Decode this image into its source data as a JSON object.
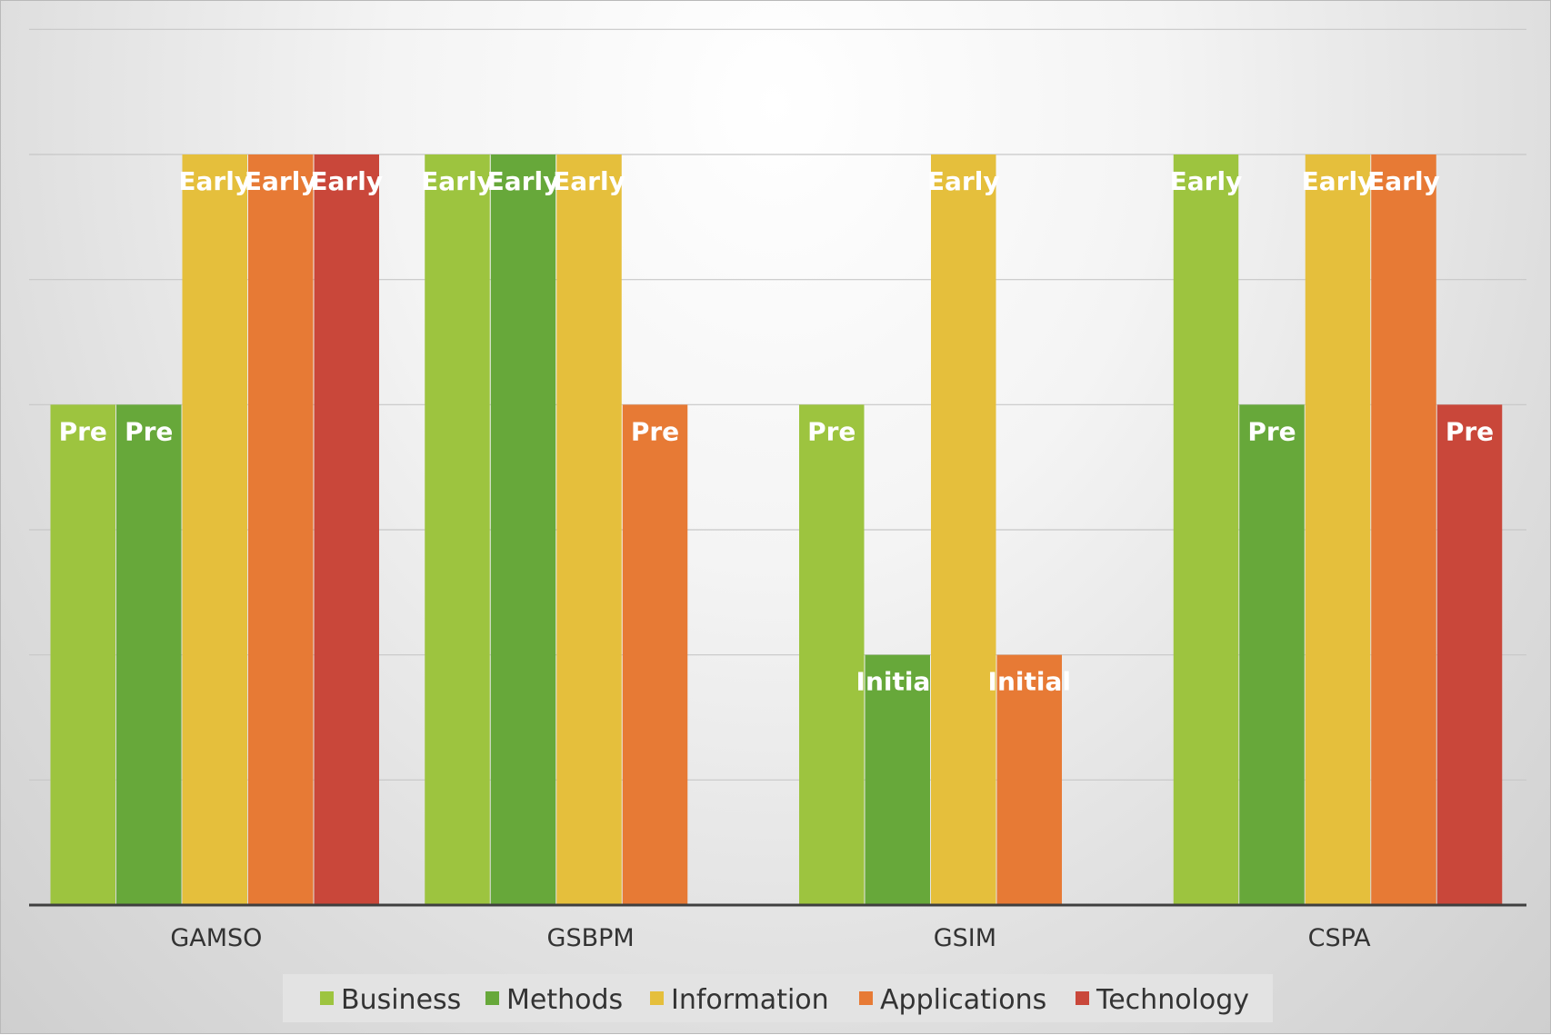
{
  "chart_data": {
    "type": "bar",
    "title": "",
    "xlabel": "",
    "ylabel": "",
    "ylim": [
      0,
      6
    ],
    "grid": true,
    "legend_position": "bottom",
    "categories": [
      "GAMSO",
      "GSBPM",
      "GSIM",
      "CSPA"
    ],
    "series": [
      {
        "name": "Business",
        "color": "#9DC43F",
        "values": [
          4,
          6,
          4,
          6
        ],
        "labels": [
          "Pre",
          "Early",
          "Pre",
          "Early"
        ]
      },
      {
        "name": "Methods",
        "color": "#67A83A",
        "values": [
          4,
          6,
          2,
          4
        ],
        "labels": [
          "Pre",
          "Early",
          "Initial",
          "Pre"
        ]
      },
      {
        "name": "Information",
        "color": "#E5BF3C",
        "values": [
          6,
          6,
          6,
          6
        ],
        "labels": [
          "Early",
          "Early",
          "Early",
          "Early"
        ]
      },
      {
        "name": "Applications",
        "color": "#E77A35",
        "values": [
          6,
          4,
          2,
          6
        ],
        "labels": [
          "Early",
          "Pre",
          "Initial",
          "Early"
        ]
      },
      {
        "name": "Technology",
        "color": "#C9473A",
        "values": [
          6,
          null,
          null,
          4
        ],
        "labels": [
          "Early",
          "",
          "",
          "Pre"
        ]
      }
    ]
  }
}
